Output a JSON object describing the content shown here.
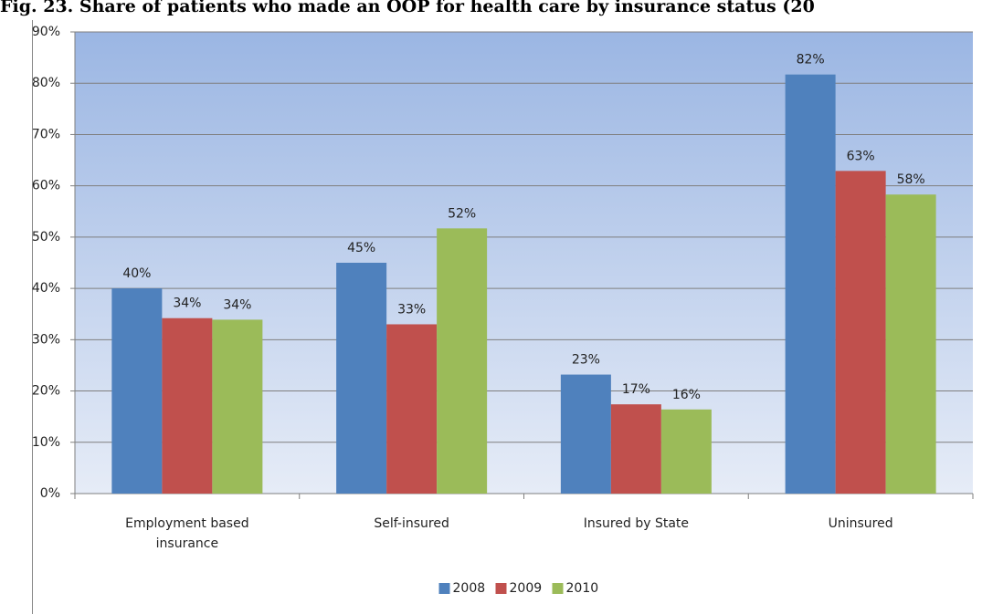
{
  "chart_data": {
    "type": "bar",
    "title": "Fig. 23. Share of patients who made an OOP for health care by insurance status (20",
    "categories": [
      "Employment based insurance",
      "Self-insured",
      "Insured by State",
      "Uninsured"
    ],
    "series": [
      {
        "name": "2008",
        "color": "#4f81bd",
        "values": [
          40,
          45,
          23.2,
          81.7
        ],
        "value_labels": [
          "40%",
          "45%",
          "23%",
          "82%"
        ]
      },
      {
        "name": "2009",
        "color": "#c0504d",
        "values": [
          34.2,
          33,
          17.4,
          62.9
        ],
        "value_labels": [
          "34%",
          "33%",
          "17%",
          "63%"
        ]
      },
      {
        "name": "2010",
        "color": "#9bbb59",
        "values": [
          33.9,
          51.7,
          16.4,
          58.3
        ],
        "value_labels": [
          "34%",
          "52%",
          "16%",
          "58%"
        ]
      }
    ],
    "ylim": [
      0,
      90
    ],
    "yticks": [
      {
        "value": 0,
        "label": "0%"
      },
      {
        "value": 10,
        "label": "10%"
      },
      {
        "value": 20,
        "label": "20%"
      },
      {
        "value": 30,
        "label": "30%"
      },
      {
        "value": 40,
        "label": "40%"
      },
      {
        "value": 50,
        "label": "50%"
      },
      {
        "value": 60,
        "label": "60%"
      },
      {
        "value": 70,
        "label": "70%"
      },
      {
        "value": 80,
        "label": "80%"
      },
      {
        "value": 90,
        "label": "90%"
      }
    ],
    "grid": true,
    "legend": "bottom"
  }
}
